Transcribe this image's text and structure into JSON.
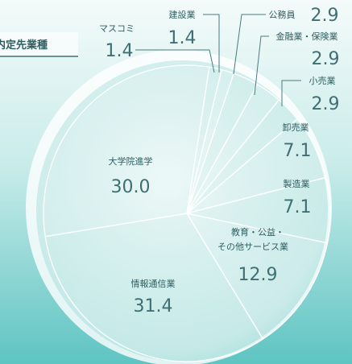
{
  "chart_data": {
    "type": "pie",
    "title": "内定先業種",
    "categories": [
      "マスコミ",
      "建設業",
      "公務員",
      "金融業・保険業",
      "小売業",
      "卸売業",
      "製造業",
      [
        "教育・公益・",
        "その他サービス業"
      ],
      "情報通信業",
      "大学院進学"
    ],
    "values": [
      1.4,
      1.4,
      2.9,
      2.9,
      2.9,
      7.1,
      7.1,
      12.9,
      31.4,
      30.0
    ],
    "value_labels": [
      "1.4",
      "1.4",
      "2.9",
      "2.9",
      "2.9",
      "7.1",
      "7.1",
      "12.9",
      "31.4",
      "30.0"
    ]
  }
}
